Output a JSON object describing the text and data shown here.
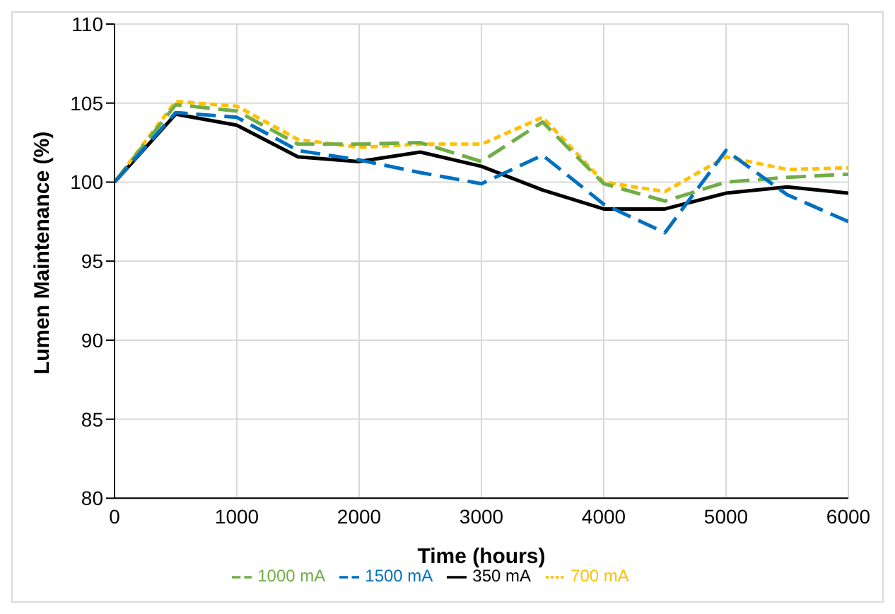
{
  "chart_data": {
    "type": "line",
    "xlabel": "Time (hours)",
    "ylabel": "Lumen Maintenance (%)",
    "x": [
      0,
      500,
      1000,
      1500,
      2000,
      2500,
      3000,
      3500,
      4000,
      4500,
      5000,
      5500,
      6000
    ],
    "series": [
      {
        "name": "350 mA",
        "color": "#000000",
        "line_style": "solid",
        "values": [
          100,
          104.3,
          103.6,
          101.6,
          101.3,
          101.9,
          101.0,
          99.5,
          98.3,
          98.3,
          99.3,
          99.7,
          99.3
        ]
      },
      {
        "name": "700 mA",
        "color": "#ffc000",
        "line_style": "dotted",
        "values": [
          100,
          105.1,
          104.8,
          102.7,
          102.2,
          102.4,
          102.4,
          104.1,
          100.0,
          99.4,
          101.6,
          100.8,
          100.9
        ]
      },
      {
        "name": "1000 mA",
        "color": "#70ad47",
        "line_style": "dashed",
        "values": [
          100,
          104.9,
          104.5,
          102.4,
          102.4,
          102.5,
          101.3,
          103.8,
          99.9,
          98.8,
          100.0,
          100.3,
          100.5
        ]
      },
      {
        "name": "1500 mA",
        "color": "#0070c0",
        "line_style": "dashed",
        "values": [
          100,
          104.4,
          104.1,
          102.0,
          101.4,
          100.6,
          99.9,
          101.7,
          98.6,
          96.8,
          102.0,
          99.2,
          97.5
        ]
      }
    ],
    "xlim": [
      0,
      6000
    ],
    "xticks": [
      0,
      1000,
      2000,
      3000,
      4000,
      5000,
      6000
    ],
    "ylim": [
      80,
      110
    ],
    "yticks": [
      80,
      85,
      90,
      95,
      100,
      105,
      110
    ],
    "grid": true,
    "legend": "bottom",
    "marker": "none"
  }
}
